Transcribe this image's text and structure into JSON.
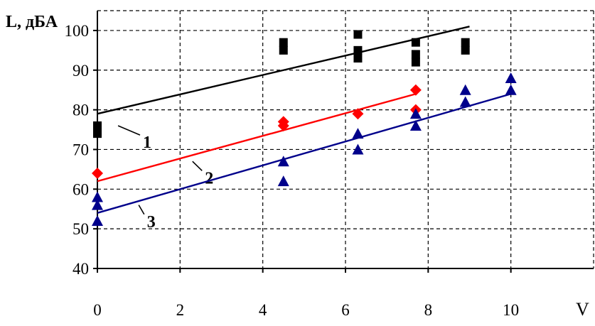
{
  "chart_data": {
    "type": "scatter",
    "xlabel": "V",
    "ylabel": "L, дБА",
    "xlim": [
      0,
      12
    ],
    "ylim": [
      40,
      105
    ],
    "x_ticks": [
      0,
      2,
      4,
      6,
      8,
      10
    ],
    "y_ticks": [
      40,
      50,
      60,
      70,
      80,
      90,
      100
    ],
    "grid": true,
    "series": [
      {
        "marker": "square",
        "color": "#000000",
        "points": [
          [
            0,
            76
          ],
          [
            0,
            74
          ],
          [
            4.5,
            97
          ],
          [
            4.5,
            95
          ],
          [
            6.3,
            99
          ],
          [
            6.3,
            95
          ],
          [
            6.3,
            93
          ],
          [
            7.7,
            97
          ],
          [
            7.7,
            94
          ],
          [
            7.7,
            92
          ],
          [
            8.9,
            97
          ],
          [
            8.9,
            95
          ]
        ]
      },
      {
        "marker": "diamond",
        "color": "#ff0000",
        "points": [
          [
            0,
            64
          ],
          [
            4.5,
            77
          ],
          [
            4.5,
            76
          ],
          [
            6.3,
            79
          ],
          [
            7.7,
            85
          ],
          [
            7.7,
            80
          ]
        ]
      },
      {
        "marker": "triangle",
        "color": "#00008b",
        "points": [
          [
            0,
            58
          ],
          [
            0,
            56
          ],
          [
            0,
            52
          ],
          [
            4.5,
            67
          ],
          [
            4.5,
            62
          ],
          [
            6.3,
            74
          ],
          [
            6.3,
            70
          ],
          [
            7.7,
            79
          ],
          [
            7.7,
            76
          ],
          [
            8.9,
            85
          ],
          [
            8.9,
            82
          ],
          [
            10,
            88
          ],
          [
            10,
            85
          ]
        ]
      }
    ],
    "trend_lines": [
      {
        "label": "1",
        "color": "#000000",
        "from": [
          0,
          79
        ],
        "to": [
          9,
          101
        ],
        "label_anchor": [
          0.5,
          76
        ],
        "label_pos": [
          1.1,
          71.5
        ]
      },
      {
        "label": "2",
        "color": "#ff0000",
        "from": [
          0,
          62
        ],
        "to": [
          7.7,
          84
        ],
        "label_anchor": [
          2.3,
          67
        ],
        "label_pos": [
          2.6,
          62.5
        ]
      },
      {
        "label": "3",
        "color": "#00008b",
        "from": [
          0,
          54
        ],
        "to": [
          10,
          84
        ],
        "label_anchor": [
          1.0,
          56
        ],
        "label_pos": [
          1.2,
          51.5
        ]
      }
    ]
  }
}
